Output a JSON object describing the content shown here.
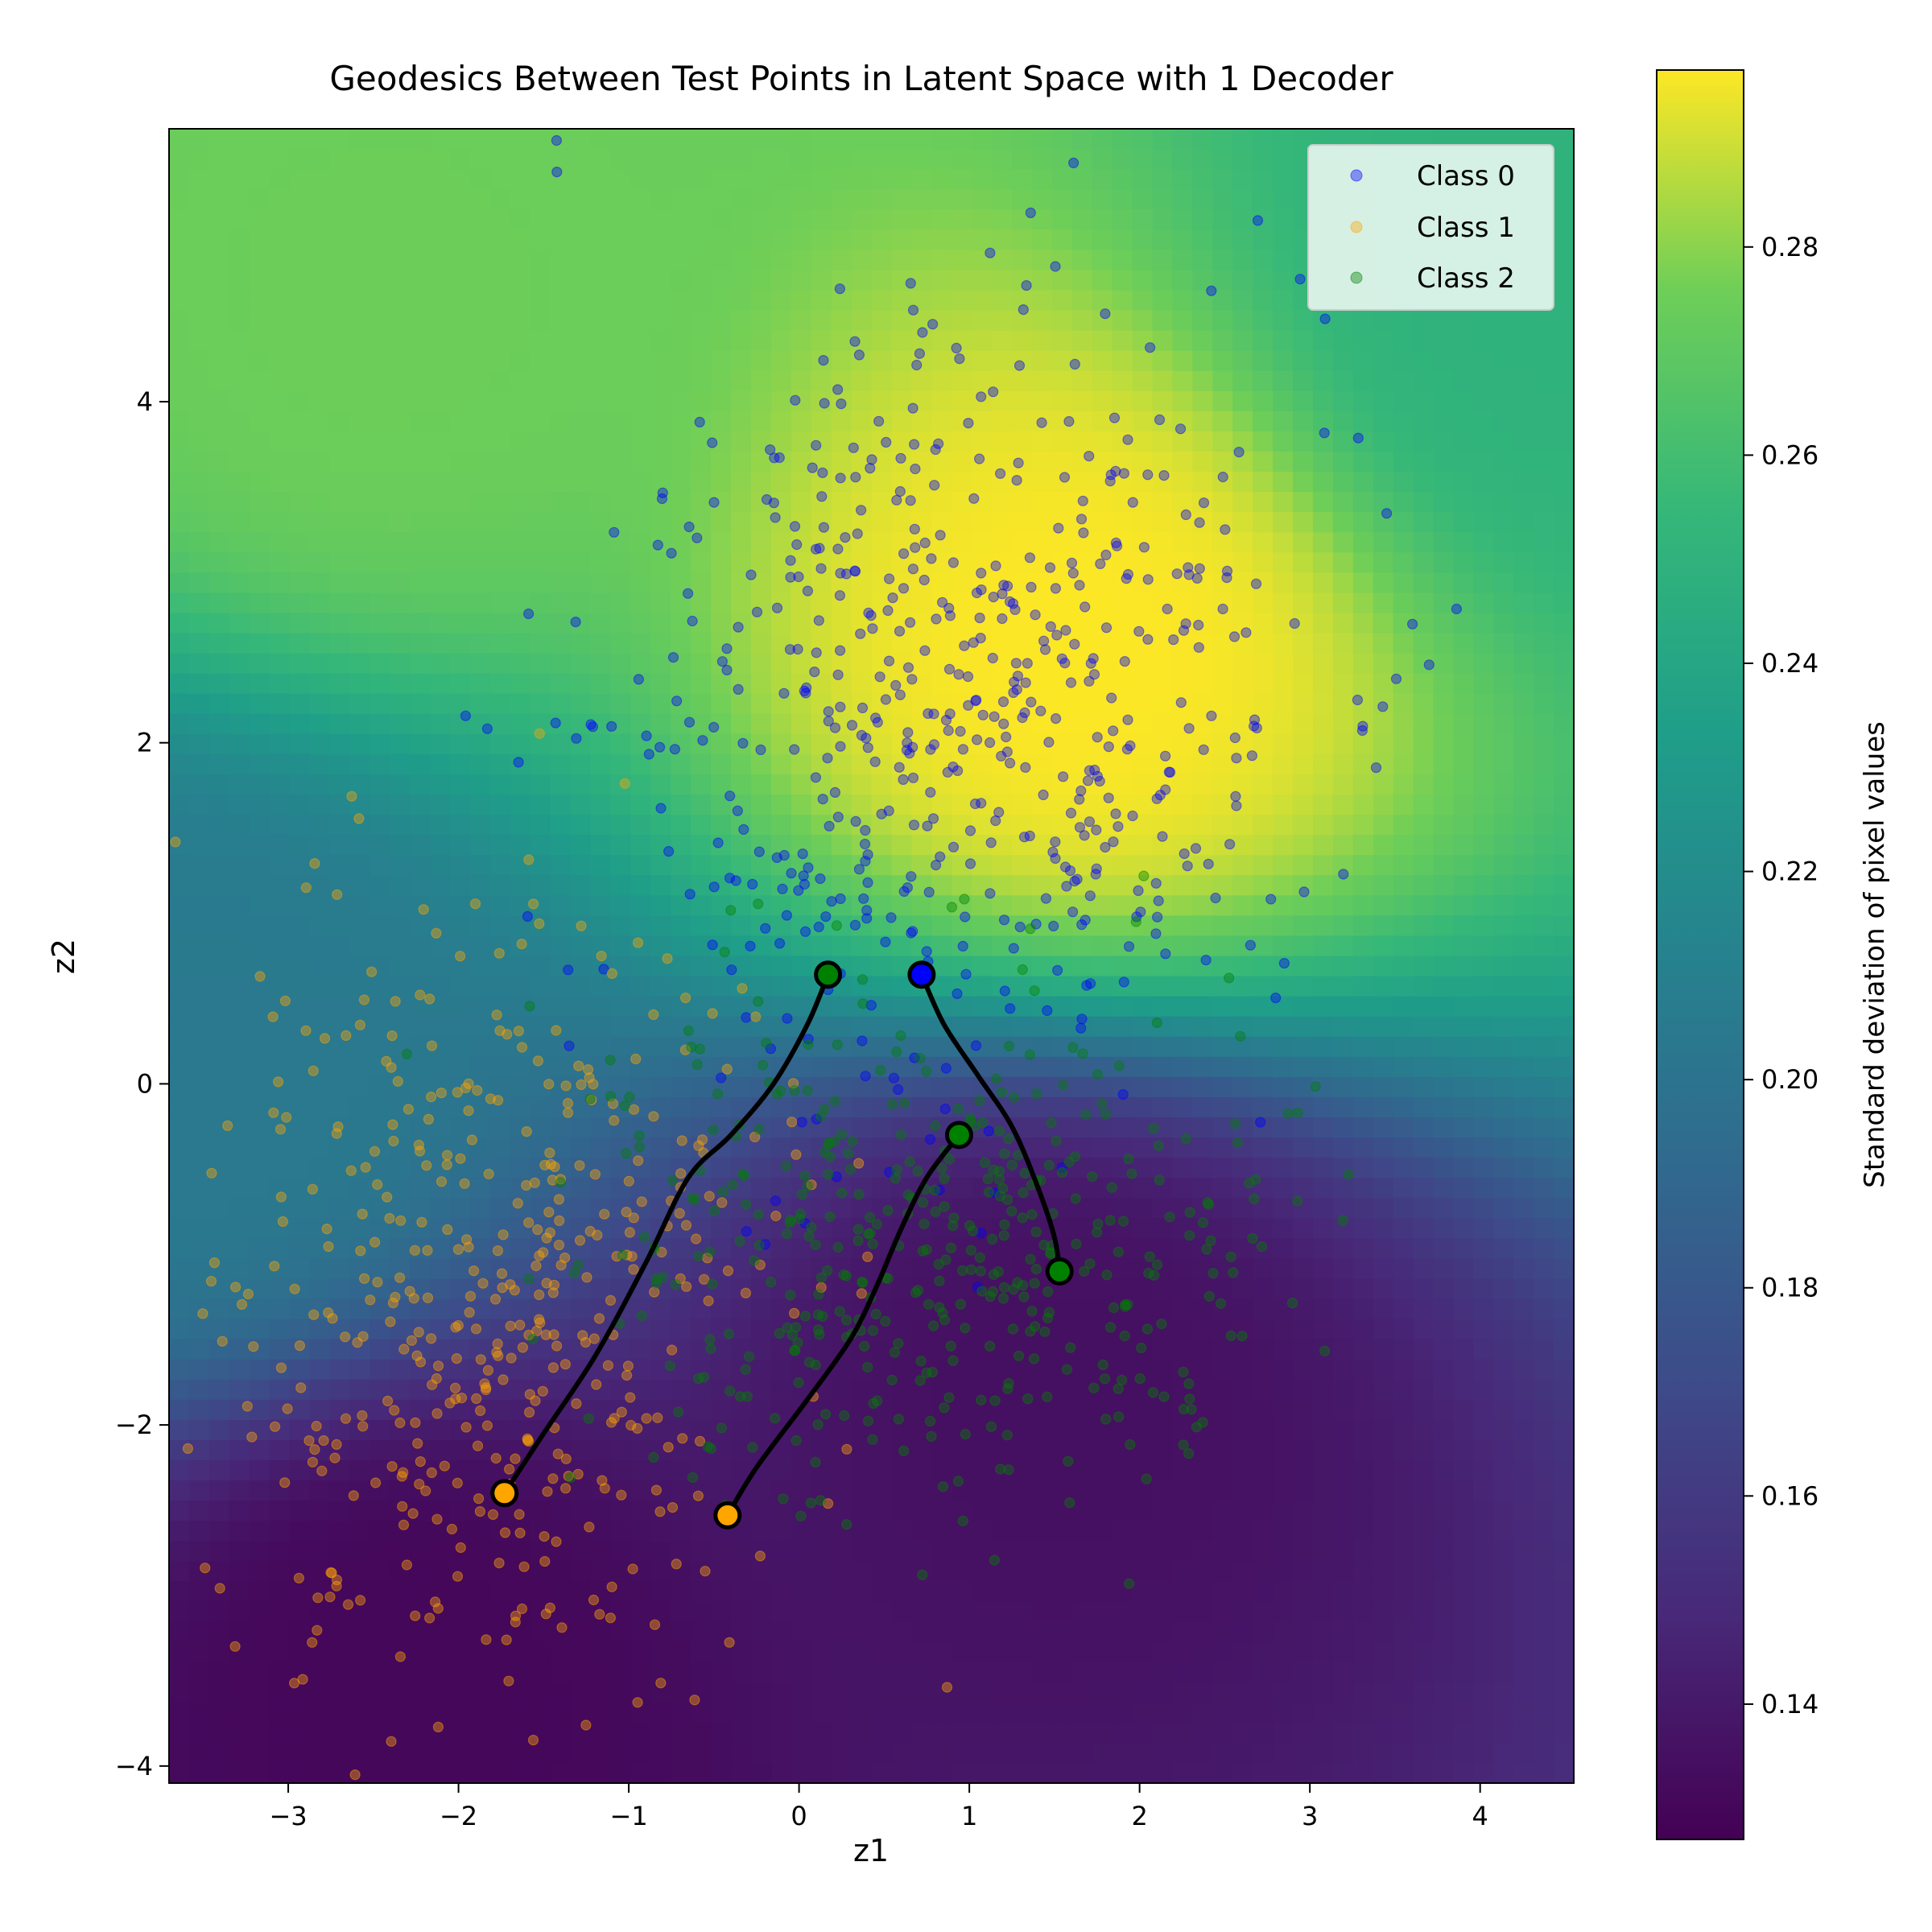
{
  "chart_data": {
    "type": "scatter",
    "title": "Geodesics Between Test Points in Latent Space with 1 Decoder",
    "xlabel": "z1",
    "ylabel": "z2",
    "xlim": [
      -3.7,
      4.55
    ],
    "ylim": [
      -4.1,
      5.6
    ],
    "xticks": [
      -3,
      -2,
      -1,
      0,
      1,
      2,
      3,
      4
    ],
    "yticks": [
      -4,
      -2,
      0,
      2,
      4
    ],
    "grid": false,
    "legend_position": "top-right",
    "legend": [
      {
        "label": "Class 0",
        "color": "#0000ff"
      },
      {
        "label": "Class 1",
        "color": "#ffa500"
      },
      {
        "label": "Class 2",
        "color": "#008000"
      }
    ],
    "background": {
      "type": "heatmap",
      "colormap": "viridis",
      "vmin": 0.127,
      "vmax": 0.297,
      "peaks": [
        {
          "x": 1.7,
          "y": 2.5,
          "value": 0.297
        },
        {
          "x": -2.5,
          "y": 4.5,
          "value": 0.275
        },
        {
          "x": 4.4,
          "y": 4.6,
          "value": 0.25
        },
        {
          "x": -2.3,
          "y": -3.5,
          "value": 0.13
        },
        {
          "x": 1.5,
          "y": -1.8,
          "value": 0.135
        },
        {
          "x": -3.6,
          "y": 0.0,
          "value": 0.205
        }
      ]
    },
    "colorbar": {
      "label": "Standard deviation of pixel values",
      "ticks": [
        0.14,
        0.16,
        0.18,
        0.2,
        0.22,
        0.24,
        0.26,
        0.28
      ]
    },
    "clusters": [
      {
        "class": "Class 0",
        "color": "#0000ff",
        "count": 560,
        "center": [
          1.0,
          2.2
        ],
        "spread": [
          1.05,
          1.25
        ],
        "seed": 11
      },
      {
        "class": "Class 1",
        "color": "#ffa500",
        "count": 460,
        "center": [
          -1.9,
          -1.2
        ],
        "spread": [
          0.9,
          1.2
        ],
        "seed": 23
      },
      {
        "class": "Class 2",
        "color": "#008000",
        "count": 440,
        "center": [
          0.8,
          -0.9
        ],
        "spread": [
          1.0,
          0.75
        ],
        "seed": 37
      }
    ],
    "geodesics": [
      {
        "start": {
          "x": -1.73,
          "y": -2.4,
          "color": "#ffa500"
        },
        "end": {
          "x": 0.17,
          "y": 0.64,
          "color": "#008000"
        },
        "path": [
          [
            -1.73,
            -2.4
          ],
          [
            -1.5,
            -2.05
          ],
          [
            -1.2,
            -1.6
          ],
          [
            -0.9,
            -1.05
          ],
          [
            -0.65,
            -0.55
          ],
          [
            -0.4,
            -0.3
          ],
          [
            -0.15,
            0.0
          ],
          [
            0.05,
            0.35
          ],
          [
            0.17,
            0.64
          ]
        ]
      },
      {
        "start": {
          "x": -0.42,
          "y": -2.53,
          "color": "#ffa500"
        },
        "end": {
          "x": 0.94,
          "y": -0.3,
          "color": "#008000"
        },
        "path": [
          [
            -0.42,
            -2.53
          ],
          [
            -0.25,
            -2.25
          ],
          [
            0.05,
            -1.85
          ],
          [
            0.3,
            -1.5
          ],
          [
            0.45,
            -1.2
          ],
          [
            0.6,
            -0.85
          ],
          [
            0.75,
            -0.55
          ],
          [
            0.94,
            -0.3
          ]
        ]
      },
      {
        "start": {
          "x": 0.72,
          "y": 0.64,
          "color": "#0000ff"
        },
        "end": {
          "x": 1.53,
          "y": -1.1,
          "color": "#008000"
        },
        "path": [
          [
            0.72,
            0.64
          ],
          [
            0.85,
            0.35
          ],
          [
            1.05,
            0.05
          ],
          [
            1.25,
            -0.25
          ],
          [
            1.4,
            -0.6
          ],
          [
            1.5,
            -0.9
          ],
          [
            1.53,
            -1.1
          ]
        ]
      }
    ]
  }
}
